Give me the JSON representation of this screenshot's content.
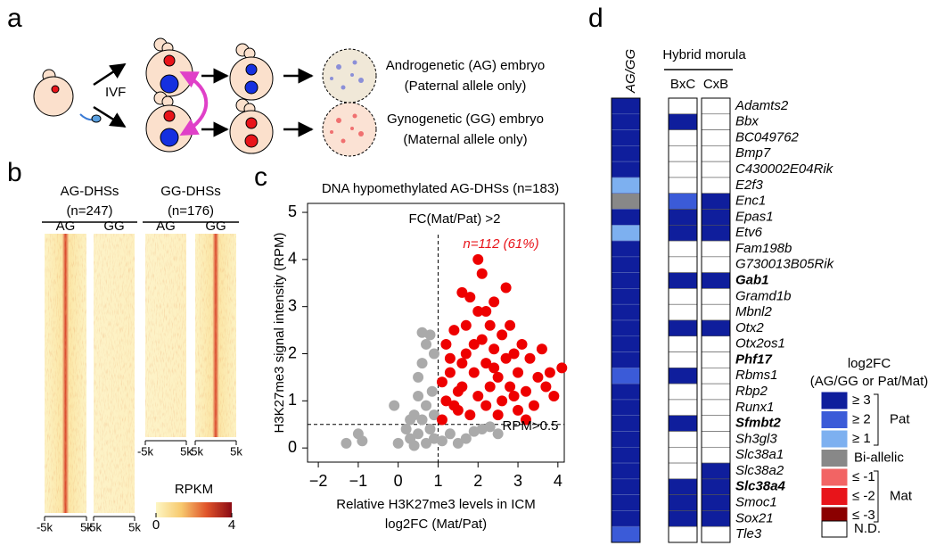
{
  "panel_labels": [
    "a",
    "b",
    "c",
    "d"
  ],
  "panel_a": {
    "ivf": "IVF",
    "ag_embryo": "Androgenetic (AG) embryo",
    "ag_note": "(Paternal allele only)",
    "gg_embryo": "Gynogenetic (GG) embryo",
    "gg_note": "(Maternal allele only)"
  },
  "panel_b": {
    "groups": [
      {
        "title": "AG-DHSs",
        "n": "(n=247)",
        "columns": [
          "AG",
          "GG"
        ],
        "xtick_labels": [
          "-5k",
          "5k"
        ]
      },
      {
        "title": "GG-DHSs",
        "n": "(n=176)",
        "columns": [
          "AG",
          "GG"
        ],
        "xtick_labels": [
          "-5k",
          "5k"
        ]
      }
    ],
    "colorbar": {
      "title": "RPKM",
      "lim": [
        0,
        4
      ],
      "ticks": [
        0,
        4
      ],
      "colors": [
        "#fdf6c3",
        "#f7c96e",
        "#e0542a",
        "#8b0a14"
      ]
    }
  },
  "chart_data": {
    "type": "scatter",
    "title": "DNA hypomethylated AG-DHSs (n=183)",
    "xlabel": [
      "Relative H3K27me3 levels in ICM",
      "log2FC (Mat/Pat)"
    ],
    "ylabel": "H3K27me3 signal intensity (RPM)",
    "xlim": [
      -2.27,
      4.16
    ],
    "ylim": [
      -0.3,
      5.19
    ],
    "xticks": [
      {
        "value": -2,
        "label": "−2"
      },
      {
        "value": -1,
        "label": "−1"
      },
      0,
      1,
      2,
      3,
      4
    ],
    "yticks": [
      0,
      1,
      2,
      3,
      4,
      5
    ],
    "vline": 1,
    "hline": 0.5,
    "annotations": {
      "fc": "FC(Mat/Pat) >2",
      "count": "n=112 (61%)",
      "rpm": "RPM>0.5"
    },
    "series": [
      {
        "color": "#aaaaaa",
        "x": [
          -1.3,
          -1,
          -0.9,
          -0.1,
          0,
          0.2,
          0.3,
          0.4,
          0.5,
          0.6,
          0.7,
          0.8,
          0.9,
          0.5,
          0.6,
          0.7,
          0.8,
          0.6,
          0.9,
          0.85,
          0.7,
          0.9,
          0.4,
          1.1,
          1.3,
          1.5,
          1.7,
          1.9,
          2.1,
          2.3,
          2.5,
          0.5,
          0.3
        ],
        "values": [
          0.1,
          0.3,
          0.15,
          0.9,
          0.1,
          0.4,
          0.2,
          0.05,
          0.3,
          0.6,
          0.1,
          0.4,
          0.2,
          1.5,
          1.8,
          2.2,
          2.4,
          2.45,
          2,
          1.2,
          0.9,
          0.7,
          0.7,
          0.15,
          0.3,
          0.1,
          0.2,
          0.35,
          0.4,
          0.45,
          0.3,
          1.1,
          0.6
        ]
      },
      {
        "color": "#ee0000",
        "x": [
          1.1,
          1.2,
          1.3,
          1.2,
          1.4,
          1.5,
          1.6,
          1.6,
          1.7,
          1.8,
          1.8,
          1.9,
          2,
          2,
          2.1,
          2.1,
          2.2,
          2.2,
          2.3,
          2.3,
          2.4,
          2.4,
          2.5,
          2.5,
          2.6,
          2.6,
          2.7,
          2.7,
          2.8,
          2.9,
          3,
          3,
          3.1,
          3.2,
          3.3,
          3.4,
          3.5,
          3.7,
          3.8,
          3.9,
          4.1,
          3.6,
          1.3,
          1.5,
          1.7,
          1.9,
          2,
          2.2,
          1.4,
          1.6,
          2.8,
          3.2,
          1.1,
          2.4,
          2.9
        ],
        "values": [
          0.6,
          1,
          1.6,
          2.2,
          2.5,
          0.8,
          1.3,
          3.3,
          2,
          3.2,
          0.7,
          1.6,
          2.9,
          1.1,
          2.3,
          3.7,
          0.9,
          1.8,
          2.6,
          1.3,
          3.1,
          2.1,
          1.5,
          0.7,
          2.4,
          1,
          1.9,
          3.4,
          1.3,
          2,
          1.6,
          0.8,
          2.2,
          1.2,
          1.9,
          0.9,
          1.5,
          1.3,
          1.6,
          1.1,
          1.7,
          2.1,
          1.9,
          1.2,
          2.6,
          2.2,
          4,
          2.9,
          0.9,
          1.8,
          2.6,
          0.6,
          1.4,
          1.7,
          1.1
        ]
      }
    ]
  },
  "panel_d": {
    "columns": [
      "AG/GG",
      "BxC",
      "CxB"
    ],
    "hybrid_header": "Hybrid morula",
    "genes": [
      {
        "name": "Adamts2"
      },
      {
        "name": "Bbx"
      },
      {
        "name": "BC049762"
      },
      {
        "name": "Bmp7"
      },
      {
        "name": "C430002E04Rik"
      },
      {
        "name": "E2f3"
      },
      {
        "name": "Enc1"
      },
      {
        "name": "Epas1"
      },
      {
        "name": "Etv6"
      },
      {
        "name": "Fam198b"
      },
      {
        "name": "G730013B05Rik"
      },
      {
        "name": "Gab1",
        "bold": true
      },
      {
        "name": "Gramd1b"
      },
      {
        "name": "Mbnl2"
      },
      {
        "name": "Otx2"
      },
      {
        "name": "Otx2os1"
      },
      {
        "name": "Phf17",
        "bold": true
      },
      {
        "name": "Rbms1"
      },
      {
        "name": "Rbp2"
      },
      {
        "name": "Runx1"
      },
      {
        "name": "Sfmbt2",
        "bold": true
      },
      {
        "name": "Sh3gl3"
      },
      {
        "name": "Slc38a1"
      },
      {
        "name": "Slc38a2"
      },
      {
        "name": "Slc38a4",
        "bold": true
      },
      {
        "name": "Smoc1"
      },
      {
        "name": "Sox21"
      },
      {
        "name": "Tle3"
      }
    ],
    "cells": [
      [
        0,
        7,
        7
      ],
      [
        0,
        0,
        7
      ],
      [
        0,
        7,
        7
      ],
      [
        0,
        7,
        7
      ],
      [
        0,
        7,
        7
      ],
      [
        2,
        7,
        7
      ],
      [
        3,
        1,
        0
      ],
      [
        0,
        0,
        0
      ],
      [
        2,
        0,
        0
      ],
      [
        0,
        7,
        7
      ],
      [
        0,
        7,
        7
      ],
      [
        0,
        0,
        0
      ],
      [
        0,
        7,
        7
      ],
      [
        0,
        7,
        7
      ],
      [
        0,
        0,
        0
      ],
      [
        0,
        7,
        7
      ],
      [
        0,
        7,
        7
      ],
      [
        1,
        0,
        7
      ],
      [
        0,
        7,
        7
      ],
      [
        0,
        7,
        7
      ],
      [
        0,
        0,
        7
      ],
      [
        0,
        7,
        7
      ],
      [
        0,
        7,
        7
      ],
      [
        0,
        7,
        0
      ],
      [
        0,
        0,
        0
      ],
      [
        0,
        0,
        0
      ],
      [
        0,
        0,
        0
      ],
      [
        1,
        7,
        7
      ]
    ],
    "legend": {
      "title": [
        "log2FC",
        "(AG/GG or Pat/Mat)"
      ],
      "items": [
        {
          "label": "≥ 3",
          "color": "#0f1e9c"
        },
        {
          "label": "≥ 2",
          "color": "#3b5bd8"
        },
        {
          "label": "≥ 1",
          "color": "#7db0f0"
        },
        {
          "label": "Bi-allelic",
          "color": "#888888"
        },
        {
          "label": "≤ -1",
          "color": "#f26464"
        },
        {
          "label": "≤ -2",
          "color": "#e8141a"
        },
        {
          "label": "≤ -3",
          "color": "#8b0000"
        },
        {
          "label": "N.D.",
          "color": "#ffffff"
        }
      ],
      "groups": [
        "Pat",
        "Mat"
      ]
    }
  }
}
